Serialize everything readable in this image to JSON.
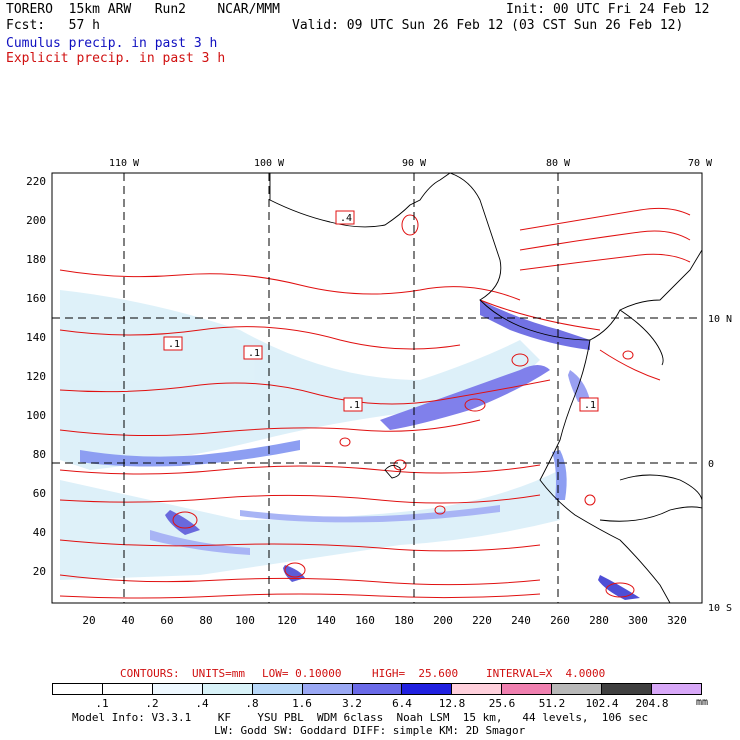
{
  "header": {
    "model": "TORERO  15km ARW   Run2    NCAR/MMM",
    "init": "Init: 00 UTC Fri 24 Feb 12",
    "fcst": "Fcst:   57 h",
    "valid": "Valid: 09 UTC Sun 26 Feb 12 (03 CST Sun 26 Feb 12)",
    "cumulus": "Cumulus precip. in past 3 h",
    "explicit": "Explicit precip. in past 3 h"
  },
  "map": {
    "lon_labels": [
      "110 W",
      "100 W",
      "90 W",
      "80 W",
      "70 W"
    ],
    "lat_labels": [
      "10 N",
      "0",
      "10 S"
    ],
    "y_ticks": [
      "220",
      "200",
      "180",
      "160",
      "140",
      "120",
      "100",
      "80",
      "60",
      "40",
      "20"
    ],
    "x_ticks": [
      "20",
      "40",
      "60",
      "80",
      "100",
      "120",
      "140",
      "160",
      "180",
      "200",
      "220",
      "240",
      "260",
      "280",
      "300",
      "320"
    ],
    "contour_labels": [
      ".4",
      ".1",
      ".1",
      ".1",
      ".1"
    ]
  },
  "contours_info": {
    "label": "CONTOURS:",
    "units": "UNITS=mm",
    "low": "LOW= 0.10000",
    "high": "HIGH=  25.600",
    "interval": "INTERVAL=X  4.0000"
  },
  "scale": {
    "labels": [
      ".1",
      ".2",
      ".4",
      ".8",
      "1.6",
      "3.2",
      "6.4",
      "12.8",
      "25.6",
      "51.2",
      "102.4",
      "204.8"
    ],
    "unit": "mm",
    "colors": [
      "#ffffff",
      "#ffffff",
      "#eef8ff",
      "#d8f2f8",
      "#b8d8f8",
      "#9aa8f4",
      "#6a6ae8",
      "#2020e0",
      "#ffd0dc",
      "#f080b0",
      "#b8b8b8",
      "#404040",
      "#d8a8f8"
    ]
  },
  "footer": {
    "line1": "Model Info: V3.3.1    KF    YSU PBL  WDM 6class  Noah LSM  15 km,   44 levels,  106 sec",
    "line2": "LW: Godd SW: Goddard DIFF: simple KM: 2D Smagor"
  }
}
